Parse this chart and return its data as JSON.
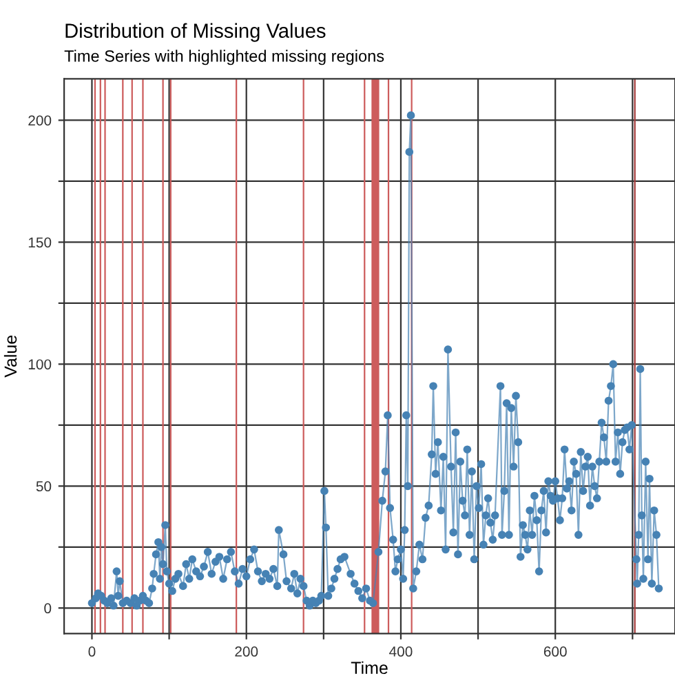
{
  "chart_data": {
    "type": "line",
    "title": "Distribution of Missing Values",
    "subtitle": "Time Series with highlighted missing regions",
    "xlabel": "Time",
    "ylabel": "Value",
    "x": [
      0,
      5,
      8,
      12,
      16,
      20,
      25,
      28,
      32,
      34,
      36,
      40,
      45,
      50,
      55,
      58,
      62,
      66,
      70,
      74,
      78,
      80,
      83,
      86,
      88,
      90,
      92,
      95,
      97,
      100,
      104,
      108,
      112,
      118,
      122,
      126,
      130,
      135,
      140,
      145,
      150,
      155,
      160,
      165,
      170,
      175,
      180,
      185,
      190,
      195,
      200,
      205,
      210,
      215,
      220,
      225,
      230,
      235,
      240,
      242,
      248,
      252,
      258,
      262,
      266,
      270,
      274,
      278,
      282,
      286,
      290,
      294,
      297,
      301,
      303,
      306,
      310,
      314,
      318,
      322,
      327,
      335,
      340,
      345,
      350,
      355,
      360,
      364,
      371,
      376,
      380,
      383,
      386,
      390,
      393,
      396,
      400,
      403,
      405,
      407,
      409,
      411,
      413,
      416,
      420,
      424,
      428,
      432,
      436,
      440,
      442,
      445,
      448,
      452,
      455,
      458,
      461,
      465,
      468,
      471,
      474,
      477,
      480,
      483,
      486,
      489,
      492,
      495,
      498,
      501,
      504,
      507,
      510,
      513,
      516,
      519,
      522,
      529,
      531,
      534,
      537,
      540,
      543,
      546,
      549,
      552,
      555,
      558,
      561,
      564,
      567,
      570,
      573,
      576,
      579,
      582,
      585,
      588,
      591,
      594,
      597,
      600,
      603,
      606,
      609,
      612,
      615,
      618,
      621,
      624,
      627,
      630,
      633,
      636,
      639,
      642,
      645,
      648,
      651,
      654,
      657,
      660,
      663,
      666,
      669,
      672,
      675,
      678,
      681,
      684,
      687,
      690,
      693,
      696,
      699,
      705,
      706,
      708,
      710,
      712,
      714,
      717,
      720,
      722,
      725,
      728,
      731,
      734
    ],
    "series": [
      {
        "color": "#4682b4",
        "values": [
          2,
          4,
          6,
          5,
          3,
          2,
          4,
          1,
          15,
          5,
          11,
          2,
          3,
          2,
          4,
          1,
          3,
          5,
          3,
          2,
          8,
          14,
          22,
          27,
          12,
          25,
          18,
          34,
          15,
          10,
          7,
          12,
          14,
          9,
          18,
          12,
          20,
          15,
          13,
          17,
          23,
          14,
          19,
          21,
          12,
          20,
          23,
          15,
          10,
          16,
          13,
          20,
          24,
          15,
          11,
          14,
          12,
          16,
          9,
          32,
          22,
          11,
          8,
          14,
          6,
          12,
          9,
          3,
          1,
          3,
          2,
          3,
          5,
          48,
          33,
          5,
          8,
          12,
          16,
          20,
          21,
          14,
          10,
          7,
          4,
          8,
          3,
          2,
          23,
          44,
          56,
          79,
          41,
          28,
          15,
          20,
          24,
          12,
          32,
          79,
          50,
          187,
          202,
          8,
          15,
          26,
          20,
          37,
          42,
          63,
          91,
          55,
          68,
          40,
          62,
          24,
          106,
          58,
          31,
          72,
          22,
          60,
          44,
          38,
          65,
          30,
          56,
          20,
          50,
          41,
          59,
          26,
          38,
          45,
          35,
          28,
          38,
          91,
          30,
          48,
          84,
          30,
          82,
          58,
          87,
          68,
          21,
          34,
          30,
          24,
          40,
          30,
          46,
          36,
          15,
          40,
          48,
          31,
          52,
          46,
          44,
          52,
          45,
          36,
          45,
          65,
          49,
          52,
          40,
          60,
          55,
          30,
          64,
          48,
          58,
          62,
          42,
          58,
          50,
          45,
          60,
          76,
          70,
          60,
          85,
          91,
          100,
          60,
          72,
          55,
          68,
          73,
          74,
          65,
          75,
          20,
          10,
          30,
          98,
          38,
          12,
          60,
          20,
          53,
          10,
          40,
          30,
          8
        ]
      }
    ],
    "bands": [
      {
        "axis": "x",
        "from": 3,
        "to": 5,
        "color": "#cd5c5c"
      },
      {
        "axis": "x",
        "from": 10,
        "to": 12,
        "color": "#cd5c5c"
      },
      {
        "axis": "x",
        "from": 16,
        "to": 18,
        "color": "#cd5c5c"
      },
      {
        "axis": "x",
        "from": 39,
        "to": 41,
        "color": "#cd5c5c"
      },
      {
        "axis": "x",
        "from": 51,
        "to": 53,
        "color": "#cd5c5c"
      },
      {
        "axis": "x",
        "from": 65,
        "to": 67,
        "color": "#cd5c5c"
      },
      {
        "axis": "x",
        "from": 91,
        "to": 93,
        "color": "#cd5c5c"
      },
      {
        "axis": "x",
        "from": 101,
        "to": 103,
        "color": "#cd5c5c"
      },
      {
        "axis": "x",
        "from": 186,
        "to": 188,
        "color": "#cd5c5c"
      },
      {
        "axis": "x",
        "from": 273,
        "to": 275,
        "color": "#cd5c5c"
      },
      {
        "axis": "x",
        "from": 352,
        "to": 354,
        "color": "#cd5c5c"
      },
      {
        "axis": "x",
        "from": 362,
        "to": 372,
        "color": "#cd5c5c"
      },
      {
        "axis": "x",
        "from": 383,
        "to": 385,
        "color": "#cd5c5c"
      },
      {
        "axis": "x",
        "from": 413,
        "to": 415,
        "color": "#cd5c5c"
      },
      {
        "axis": "x",
        "from": 702,
        "to": 704,
        "color": "#a33c3c"
      }
    ],
    "xlim": [
      -36,
      755
    ],
    "ylim": [
      -10.5,
      217
    ],
    "xticks": [
      0,
      {
        "value": 100,
        "label": null
      },
      200,
      {
        "value": 300,
        "label": null
      },
      400,
      {
        "value": 500,
        "label": null
      },
      600,
      {
        "value": 700,
        "label": null
      }
    ],
    "yticks": [
      0,
      {
        "value": 25,
        "label": null
      },
      50,
      {
        "value": 75,
        "label": null
      },
      100,
      {
        "value": 125,
        "label": null
      },
      150,
      {
        "value": 175,
        "label": null
      },
      200
    ],
    "grid": true,
    "marker": "circle",
    "line_style": "solid"
  }
}
